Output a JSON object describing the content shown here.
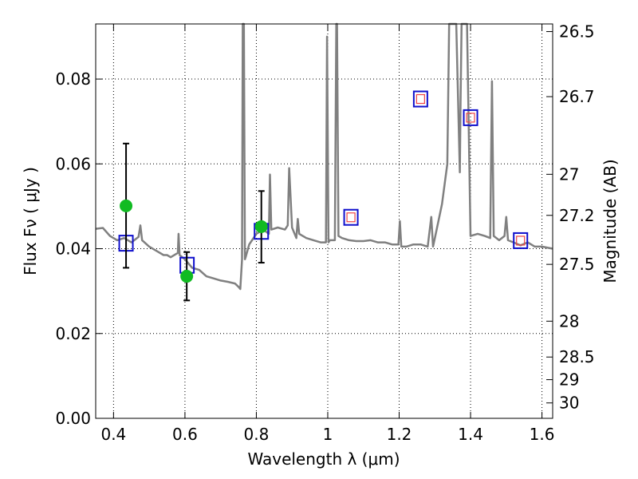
{
  "chart_data": {
    "type": "scatter",
    "xlabel": "Wavelength  λ (μm)",
    "ylabel_left": "Flux  Fν  ( μJy )",
    "ylabel_right": "Magnitude (AB)",
    "xlim": [
      0.35,
      1.63
    ],
    "ylim": [
      0.0,
      0.093
    ],
    "grid": true,
    "x_ticks": [
      0.4,
      0.6,
      0.8,
      1.0,
      1.2,
      1.4,
      1.6
    ],
    "x_tick_labels": [
      "0.4",
      "0.6",
      "0.8",
      "1",
      "1.2",
      "1.4",
      "1.6"
    ],
    "y_ticks": [
      0.0,
      0.02,
      0.04,
      0.06,
      0.08
    ],
    "y_tick_labels": [
      "0.00",
      "0.02",
      "0.04",
      "0.06",
      "0.08"
    ],
    "mag_ticks": [
      26.5,
      26.7,
      27,
      27.2,
      27.5,
      28,
      28.5,
      29,
      30
    ],
    "mag_tick_labels": [
      "26.5",
      "26.7",
      "27",
      "27.2",
      "27.5",
      "28",
      "28.5",
      "29",
      "30"
    ],
    "observed": {
      "x": [
        0.435,
        0.605,
        0.814
      ],
      "y": [
        0.0501,
        0.0335,
        0.0452
      ],
      "yerr_low": [
        0.0355,
        0.0278,
        0.0367
      ],
      "yerr_high": [
        0.0648,
        0.0392,
        0.0536
      ],
      "color": "#11bb22"
    },
    "model_bands": {
      "x": [
        0.435,
        0.606,
        0.814,
        1.065,
        1.26,
        1.4,
        1.54
      ],
      "y": [
        0.0413,
        0.0361,
        0.0441,
        0.0474,
        0.0753,
        0.0709,
        0.0419
      ],
      "color": "#1010cc"
    },
    "upper_limits": {
      "x": [
        1.065,
        1.26,
        1.4,
        1.54
      ],
      "y": [
        0.0474,
        0.0753,
        0.0709,
        0.0419
      ],
      "color": "#ee4444"
    },
    "spectrum": {
      "color": "#808080",
      "x": [
        0.35,
        0.37,
        0.39,
        0.41,
        0.43,
        0.45,
        0.47,
        0.475,
        0.48,
        0.5,
        0.52,
        0.54,
        0.55,
        0.56,
        0.58,
        0.582,
        0.585,
        0.6,
        0.62,
        0.64,
        0.66,
        0.68,
        0.7,
        0.72,
        0.74,
        0.75,
        0.755,
        0.76,
        0.762,
        0.765,
        0.768,
        0.77,
        0.78,
        0.8,
        0.82,
        0.835,
        0.838,
        0.842,
        0.86,
        0.88,
        0.888,
        0.892,
        0.9,
        0.912,
        0.916,
        0.92,
        0.94,
        0.96,
        0.98,
        0.995,
        0.998,
        1.002,
        1.006,
        1.02,
        1.024,
        1.026,
        1.03,
        1.04,
        1.06,
        1.08,
        1.1,
        1.12,
        1.14,
        1.16,
        1.18,
        1.198,
        1.202,
        1.206,
        1.22,
        1.24,
        1.26,
        1.28,
        1.29,
        1.295,
        1.3,
        1.32,
        1.335,
        1.34,
        1.36,
        1.37,
        1.372,
        1.375,
        1.39,
        1.4,
        1.42,
        1.44,
        1.455,
        1.46,
        1.465,
        1.48,
        1.495,
        1.5,
        1.505,
        1.52,
        1.54,
        1.56,
        1.58,
        1.6,
        1.63
      ],
      "y": [
        0.0447,
        0.0449,
        0.043,
        0.042,
        0.0425,
        0.0415,
        0.0428,
        0.0455,
        0.042,
        0.0405,
        0.0395,
        0.0385,
        0.0385,
        0.038,
        0.039,
        0.0435,
        0.0385,
        0.0375,
        0.0355,
        0.035,
        0.0335,
        0.033,
        0.0325,
        0.0322,
        0.0318,
        0.031,
        0.0305,
        0.0375,
        0.095,
        0.095,
        0.0375,
        0.038,
        0.041,
        0.0435,
        0.0445,
        0.0435,
        0.0575,
        0.0445,
        0.045,
        0.0445,
        0.0455,
        0.059,
        0.045,
        0.0425,
        0.047,
        0.0435,
        0.0425,
        0.042,
        0.0415,
        0.0415,
        0.09,
        0.0415,
        0.042,
        0.042,
        0.095,
        0.095,
        0.043,
        0.0425,
        0.042,
        0.0418,
        0.0418,
        0.042,
        0.0415,
        0.0415,
        0.041,
        0.041,
        0.0465,
        0.0405,
        0.0405,
        0.041,
        0.041,
        0.0405,
        0.0475,
        0.0405,
        0.0425,
        0.0505,
        0.06,
        0.095,
        0.095,
        0.058,
        0.0745,
        0.095,
        0.095,
        0.043,
        0.0435,
        0.043,
        0.0425,
        0.0795,
        0.043,
        0.042,
        0.043,
        0.0475,
        0.042,
        0.0415,
        0.0408,
        0.0415,
        0.0405,
        0.0405,
        0.04
      ]
    }
  }
}
